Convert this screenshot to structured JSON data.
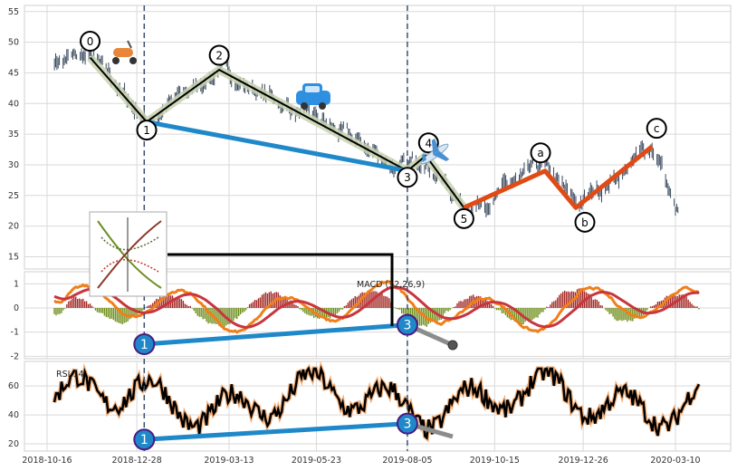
{
  "chart_data": [
    {
      "type": "line",
      "panel": "price",
      "x_ticks": [
        "2018-10-16",
        "2018-12-28",
        "2019-03-13",
        "2019-05-23",
        "2019-08-05",
        "2019-10-15",
        "2019-12-26",
        "2020-03-10"
      ],
      "y_ticks": [
        15,
        20,
        25,
        30,
        35,
        40,
        45,
        50,
        55
      ],
      "ylim": [
        13,
        56
      ],
      "grid": true,
      "wave_points": [
        {
          "label": "0",
          "date": "2018-11-20",
          "value": 47.5
        },
        {
          "label": "1",
          "date": "2019-01-05",
          "value": 37.0
        },
        {
          "label": "2",
          "date": "2019-03-05",
          "value": 45.5
        },
        {
          "label": "3",
          "date": "2019-08-05",
          "value": 29.0
        },
        {
          "label": "4",
          "date": "2019-08-20",
          "value": 31.5
        },
        {
          "label": "5",
          "date": "2019-09-20",
          "value": 23.0
        },
        {
          "label": "a",
          "date": "2019-11-25",
          "value": 29.0
        },
        {
          "label": "b",
          "date": "2019-12-20",
          "value": 23.0
        },
        {
          "label": "c",
          "date": "2020-02-20",
          "value": 33.0
        }
      ],
      "trend_line": {
        "from": {
          "date": "2019-01-05",
          "value": 37
        },
        "to": {
          "date": "2019-08-05",
          "value": 29
        }
      },
      "vertical_markers": [
        "2019-01-03",
        "2019-08-05"
      ],
      "icons": [
        "scooter-icon",
        "car-icon",
        "airplane-icon"
      ]
    },
    {
      "type": "line",
      "panel": "macd",
      "title": "MACD (12,26,9)",
      "y_ticks": [
        -2,
        -1,
        0,
        1
      ],
      "ylim": [
        -2.1,
        1.5
      ],
      "divergence": {
        "points": [
          {
            "label": "1",
            "date": "2019-01-03",
            "value": -1.5
          },
          {
            "label": "3",
            "date": "2019-08-05",
            "value": -0.7
          }
        ]
      },
      "series_colors": {
        "macd": "#f07f1a",
        "signal": "#c8353e",
        "hist_pos": "#a32a26",
        "hist_neg": "#6f8f1d"
      }
    },
    {
      "type": "line",
      "panel": "rsi",
      "title": "RSI 14",
      "y_ticks": [
        20,
        40,
        60
      ],
      "ylim": [
        15,
        77
      ],
      "divergence": {
        "points": [
          {
            "label": "1",
            "date": "2019-01-03",
            "value": 23
          },
          {
            "label": "3",
            "date": "2019-08-05",
            "value": 34
          }
        ]
      }
    }
  ],
  "colors": {
    "trend": "#1f88c9",
    "wave": "#000000",
    "abc": "#e04a14",
    "marker": "#3a5070",
    "grid": "#d9d9d9"
  }
}
